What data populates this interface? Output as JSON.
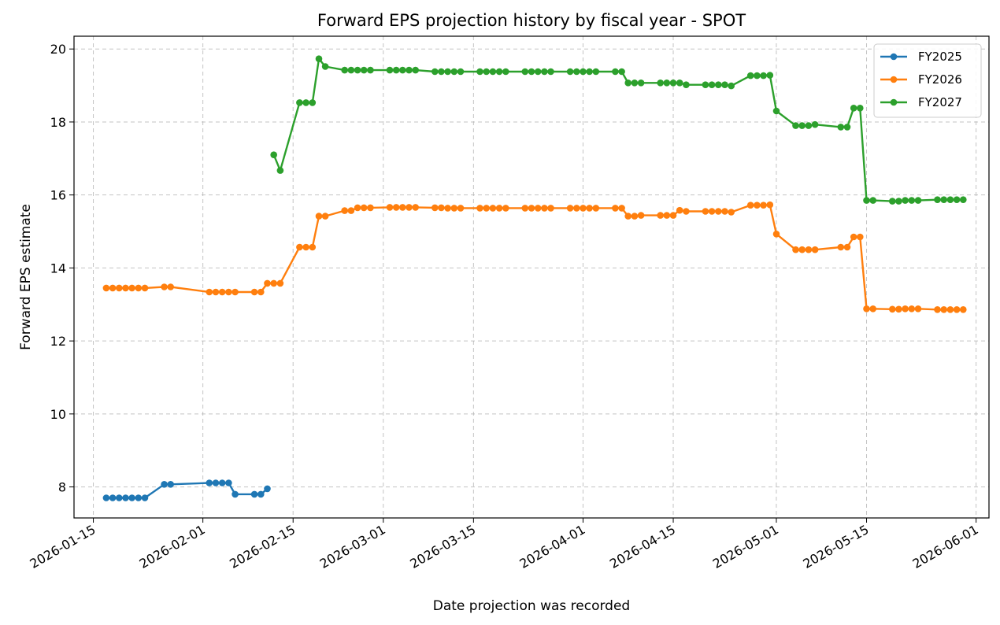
{
  "chart_data": {
    "type": "line",
    "title": "Forward EPS projection history by fiscal year - SPOT",
    "xlabel": "Date projection was recorded",
    "ylabel": "Forward EPS estimate",
    "x_type": "date",
    "xlim": [
      "2026-01-12",
      "2026-06-03"
    ],
    "ylim": [
      7.15,
      20.35
    ],
    "x_ticks": [
      "2026-01-15",
      "2026-02-01",
      "2026-02-15",
      "2026-03-01",
      "2026-03-15",
      "2026-04-01",
      "2026-04-15",
      "2026-05-01",
      "2026-05-15",
      "2026-06-01"
    ],
    "y_ticks": [
      8,
      10,
      12,
      14,
      16,
      18,
      20
    ],
    "grid": true,
    "legend_position": "top-right",
    "series": [
      {
        "name": "FY2025",
        "color": "#1f77b4",
        "points": [
          [
            "2026-01-17",
            7.7
          ],
          [
            "2026-01-18",
            7.7
          ],
          [
            "2026-01-19",
            7.7
          ],
          [
            "2026-01-20",
            7.7
          ],
          [
            "2026-01-21",
            7.7
          ],
          [
            "2026-01-22",
            7.7
          ],
          [
            "2026-01-23",
            7.7
          ],
          [
            "2026-01-26",
            8.07
          ],
          [
            "2026-01-27",
            8.07
          ],
          [
            "2026-02-02",
            8.11
          ],
          [
            "2026-02-03",
            8.11
          ],
          [
            "2026-02-04",
            8.11
          ],
          [
            "2026-02-05",
            8.11
          ],
          [
            "2026-02-06",
            7.8
          ],
          [
            "2026-02-09",
            7.8
          ],
          [
            "2026-02-10",
            7.8
          ],
          [
            "2026-02-11",
            7.95
          ]
        ]
      },
      {
        "name": "FY2026",
        "color": "#ff7f0e",
        "points": [
          [
            "2026-01-17",
            13.45
          ],
          [
            "2026-01-18",
            13.45
          ],
          [
            "2026-01-19",
            13.45
          ],
          [
            "2026-01-20",
            13.45
          ],
          [
            "2026-01-21",
            13.45
          ],
          [
            "2026-01-22",
            13.45
          ],
          [
            "2026-01-23",
            13.45
          ],
          [
            "2026-01-26",
            13.48
          ],
          [
            "2026-01-27",
            13.48
          ],
          [
            "2026-02-02",
            13.34
          ],
          [
            "2026-02-03",
            13.34
          ],
          [
            "2026-02-04",
            13.34
          ],
          [
            "2026-02-05",
            13.34
          ],
          [
            "2026-02-06",
            13.34
          ],
          [
            "2026-02-09",
            13.34
          ],
          [
            "2026-02-10",
            13.34
          ],
          [
            "2026-02-11",
            13.58
          ],
          [
            "2026-02-12",
            13.58
          ],
          [
            "2026-02-13",
            13.58
          ],
          [
            "2026-02-16",
            14.57
          ],
          [
            "2026-02-17",
            14.57
          ],
          [
            "2026-02-18",
            14.57
          ],
          [
            "2026-02-19",
            15.42
          ],
          [
            "2026-02-20",
            15.42
          ],
          [
            "2026-02-23",
            15.57
          ],
          [
            "2026-02-24",
            15.57
          ],
          [
            "2026-02-25",
            15.65
          ],
          [
            "2026-02-26",
            15.65
          ],
          [
            "2026-02-27",
            15.65
          ],
          [
            "2026-03-02",
            15.66
          ],
          [
            "2026-03-03",
            15.66
          ],
          [
            "2026-03-04",
            15.66
          ],
          [
            "2026-03-05",
            15.66
          ],
          [
            "2026-03-06",
            15.66
          ],
          [
            "2026-03-09",
            15.65
          ],
          [
            "2026-03-10",
            15.65
          ],
          [
            "2026-03-11",
            15.64
          ],
          [
            "2026-03-12",
            15.64
          ],
          [
            "2026-03-13",
            15.64
          ],
          [
            "2026-03-16",
            15.64
          ],
          [
            "2026-03-17",
            15.64
          ],
          [
            "2026-03-18",
            15.64
          ],
          [
            "2026-03-19",
            15.64
          ],
          [
            "2026-03-20",
            15.64
          ],
          [
            "2026-03-23",
            15.64
          ],
          [
            "2026-03-24",
            15.64
          ],
          [
            "2026-03-25",
            15.64
          ],
          [
            "2026-03-26",
            15.64
          ],
          [
            "2026-03-27",
            15.64
          ],
          [
            "2026-03-30",
            15.64
          ],
          [
            "2026-03-31",
            15.64
          ],
          [
            "2026-04-01",
            15.64
          ],
          [
            "2026-04-02",
            15.64
          ],
          [
            "2026-04-03",
            15.64
          ],
          [
            "2026-04-06",
            15.64
          ],
          [
            "2026-04-07",
            15.64
          ],
          [
            "2026-04-08",
            15.42
          ],
          [
            "2026-04-09",
            15.42
          ],
          [
            "2026-04-10",
            15.44
          ],
          [
            "2026-04-13",
            15.44
          ],
          [
            "2026-04-14",
            15.44
          ],
          [
            "2026-04-15",
            15.44
          ],
          [
            "2026-04-16",
            15.58
          ],
          [
            "2026-04-17",
            15.55
          ],
          [
            "2026-04-20",
            15.55
          ],
          [
            "2026-04-21",
            15.55
          ],
          [
            "2026-04-22",
            15.55
          ],
          [
            "2026-04-23",
            15.55
          ],
          [
            "2026-04-24",
            15.53
          ],
          [
            "2026-04-27",
            15.72
          ],
          [
            "2026-04-28",
            15.72
          ],
          [
            "2026-04-29",
            15.72
          ],
          [
            "2026-04-30",
            15.73
          ],
          [
            "2026-05-01",
            14.93
          ],
          [
            "2026-05-04",
            14.5
          ],
          [
            "2026-05-05",
            14.5
          ],
          [
            "2026-05-06",
            14.5
          ],
          [
            "2026-05-07",
            14.5
          ],
          [
            "2026-05-11",
            14.57
          ],
          [
            "2026-05-12",
            14.57
          ],
          [
            "2026-05-13",
            14.85
          ],
          [
            "2026-05-14",
            14.85
          ],
          [
            "2026-05-15",
            12.88
          ],
          [
            "2026-05-16",
            12.88
          ],
          [
            "2026-05-19",
            12.87
          ],
          [
            "2026-05-20",
            12.87
          ],
          [
            "2026-05-21",
            12.88
          ],
          [
            "2026-05-22",
            12.88
          ],
          [
            "2026-05-23",
            12.88
          ],
          [
            "2026-05-26",
            12.86
          ],
          [
            "2026-05-27",
            12.86
          ],
          [
            "2026-05-28",
            12.86
          ],
          [
            "2026-05-29",
            12.86
          ],
          [
            "2026-05-30",
            12.86
          ]
        ]
      },
      {
        "name": "FY2027",
        "color": "#2ca02c",
        "points": [
          [
            "2026-02-12",
            17.1
          ],
          [
            "2026-02-13",
            16.67
          ],
          [
            "2026-02-16",
            18.53
          ],
          [
            "2026-02-17",
            18.53
          ],
          [
            "2026-02-18",
            18.53
          ],
          [
            "2026-02-19",
            19.73
          ],
          [
            "2026-02-20",
            19.52
          ],
          [
            "2026-02-23",
            19.42
          ],
          [
            "2026-02-24",
            19.42
          ],
          [
            "2026-02-25",
            19.42
          ],
          [
            "2026-02-26",
            19.42
          ],
          [
            "2026-02-27",
            19.42
          ],
          [
            "2026-03-02",
            19.42
          ],
          [
            "2026-03-03",
            19.42
          ],
          [
            "2026-03-04",
            19.42
          ],
          [
            "2026-03-05",
            19.42
          ],
          [
            "2026-03-06",
            19.42
          ],
          [
            "2026-03-09",
            19.38
          ],
          [
            "2026-03-10",
            19.38
          ],
          [
            "2026-03-11",
            19.38
          ],
          [
            "2026-03-12",
            19.38
          ],
          [
            "2026-03-13",
            19.38
          ],
          [
            "2026-03-16",
            19.38
          ],
          [
            "2026-03-17",
            19.38
          ],
          [
            "2026-03-18",
            19.38
          ],
          [
            "2026-03-19",
            19.38
          ],
          [
            "2026-03-20",
            19.38
          ],
          [
            "2026-03-23",
            19.38
          ],
          [
            "2026-03-24",
            19.38
          ],
          [
            "2026-03-25",
            19.38
          ],
          [
            "2026-03-26",
            19.38
          ],
          [
            "2026-03-27",
            19.38
          ],
          [
            "2026-03-30",
            19.38
          ],
          [
            "2026-03-31",
            19.38
          ],
          [
            "2026-04-01",
            19.38
          ],
          [
            "2026-04-02",
            19.38
          ],
          [
            "2026-04-03",
            19.38
          ],
          [
            "2026-04-06",
            19.38
          ],
          [
            "2026-04-07",
            19.38
          ],
          [
            "2026-04-08",
            19.07
          ],
          [
            "2026-04-09",
            19.07
          ],
          [
            "2026-04-10",
            19.07
          ],
          [
            "2026-04-13",
            19.07
          ],
          [
            "2026-04-14",
            19.07
          ],
          [
            "2026-04-15",
            19.07
          ],
          [
            "2026-04-16",
            19.07
          ],
          [
            "2026-04-17",
            19.02
          ],
          [
            "2026-04-20",
            19.02
          ],
          [
            "2026-04-21",
            19.02
          ],
          [
            "2026-04-22",
            19.02
          ],
          [
            "2026-04-23",
            19.02
          ],
          [
            "2026-04-24",
            18.99
          ],
          [
            "2026-04-27",
            19.27
          ],
          [
            "2026-04-28",
            19.27
          ],
          [
            "2026-04-29",
            19.27
          ],
          [
            "2026-04-30",
            19.28
          ],
          [
            "2026-05-01",
            18.3
          ],
          [
            "2026-05-04",
            17.9
          ],
          [
            "2026-05-05",
            17.9
          ],
          [
            "2026-05-06",
            17.9
          ],
          [
            "2026-05-07",
            17.93
          ],
          [
            "2026-05-11",
            17.86
          ],
          [
            "2026-05-12",
            17.86
          ],
          [
            "2026-05-13",
            18.38
          ],
          [
            "2026-05-14",
            18.38
          ],
          [
            "2026-05-15",
            15.85
          ],
          [
            "2026-05-16",
            15.85
          ],
          [
            "2026-05-19",
            15.83
          ],
          [
            "2026-05-20",
            15.83
          ],
          [
            "2026-05-21",
            15.85
          ],
          [
            "2026-05-22",
            15.85
          ],
          [
            "2026-05-23",
            15.85
          ],
          [
            "2026-05-26",
            15.87
          ],
          [
            "2026-05-27",
            15.87
          ],
          [
            "2026-05-28",
            15.87
          ],
          [
            "2026-05-29",
            15.87
          ],
          [
            "2026-05-30",
            15.87
          ]
        ]
      }
    ]
  }
}
